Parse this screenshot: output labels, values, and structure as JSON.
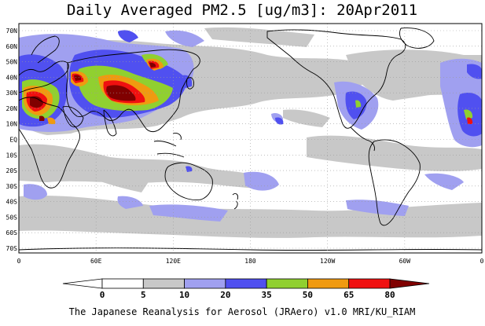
{
  "title": "Daily Averaged PM2.5 [ug/m3]: 20Apr2011",
  "credit": "The Japanese Reanalysis for Aerosol (JRAero) v1.0 MRI/KU_RIAM",
  "map": {
    "lon_labels": [
      "0",
      "60E",
      "120E",
      "180",
      "120W",
      "60W",
      "0"
    ],
    "lat_labels": [
      "70N",
      "60N",
      "50N",
      "40N",
      "30N",
      "20N",
      "10N",
      "EQ",
      "10S",
      "20S",
      "30S",
      "40S",
      "50S",
      "60S",
      "70S"
    ]
  },
  "colorbar": {
    "levels": [
      "0",
      "5",
      "10",
      "20",
      "35",
      "50",
      "65",
      "80"
    ],
    "colors": [
      "#ffffff",
      "#ffffff",
      "#c8c8c8",
      "#a0a0f0",
      "#5050f0",
      "#90d030",
      "#f09a10",
      "#f01010",
      "#800000"
    ]
  },
  "colors": {
    "low": "#c8c8c8",
    "light_blue": "#a0a0f0",
    "blue": "#5050f0",
    "green": "#90d030",
    "orange": "#f09a10",
    "red": "#f01010",
    "darkred": "#800000"
  }
}
